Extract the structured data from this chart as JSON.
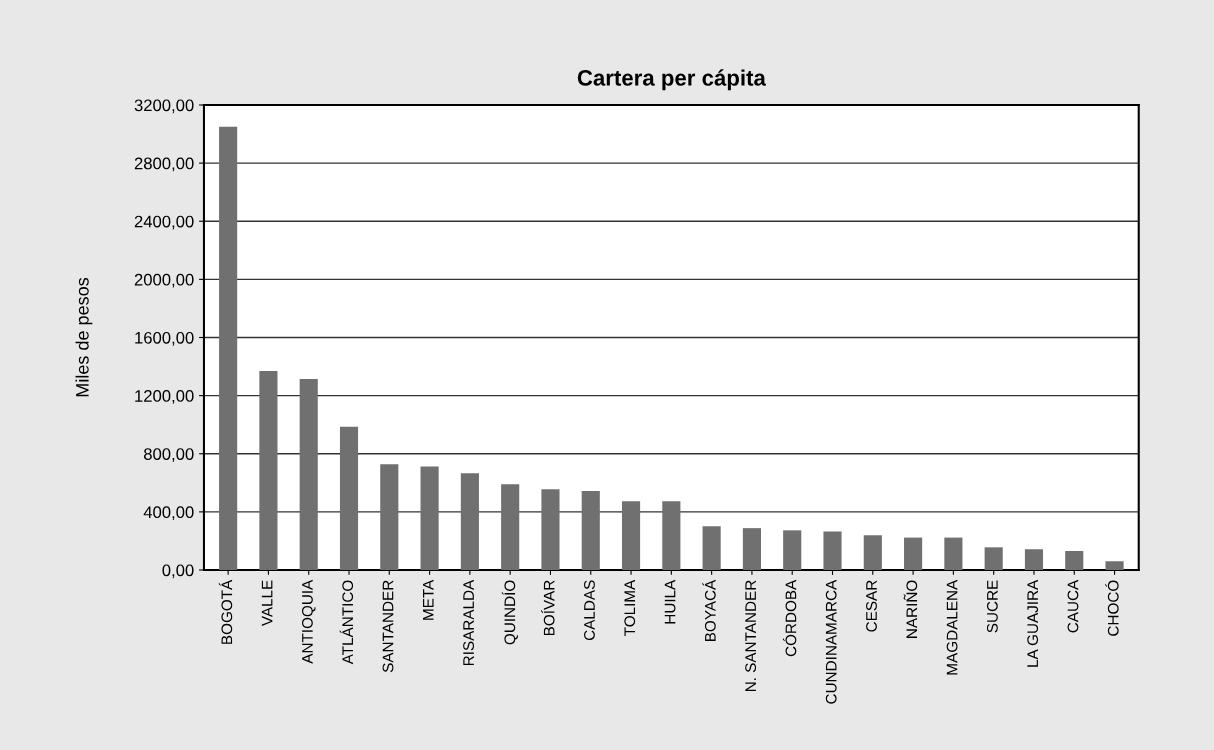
{
  "chart_data": {
    "type": "bar",
    "title": "Cartera per cápita",
    "ylabel": "Miles de pesos",
    "categories": [
      "BOGOTÁ",
      "VALLE",
      "ANTIOQUIA",
      "ATLÁNTICO",
      "SANTANDER",
      "META",
      "RISARALDA",
      "QUINDÍO",
      "BOÍVAR",
      "CALDAS",
      "TOLIMA",
      "HUILA",
      "BOYACÁ",
      "N. SANTANDER",
      "CÓRDOBA",
      "CUNDINAMARCA",
      "CESAR",
      "NARIÑO",
      "MAGDALENA",
      "SUCRE",
      "LA GUAJIRA",
      "CAUCA",
      "CHOCÓ"
    ],
    "values": [
      3050,
      1370,
      1315,
      985,
      727,
      713,
      665,
      590,
      555,
      543,
      473,
      473,
      301,
      288,
      273,
      265,
      239,
      223,
      223,
      156,
      143,
      130,
      60
    ],
    "color": "#707070",
    "ylim": [
      0,
      3200
    ],
    "yticks": [
      {
        "value": 0,
        "label": "0,00"
      },
      {
        "value": 400,
        "label": "400,00"
      },
      {
        "value": 800,
        "label": "800,00"
      },
      {
        "value": 1200,
        "label": "1200,00"
      },
      {
        "value": 1600,
        "label": "1600,00"
      },
      {
        "value": 2000,
        "label": "2000,00"
      },
      {
        "value": 2400,
        "label": "2400,00"
      },
      {
        "value": 2800,
        "label": "2800,00"
      },
      {
        "value": 3200,
        "label": "3200,00"
      }
    ],
    "grid": "y",
    "legend": false
  }
}
